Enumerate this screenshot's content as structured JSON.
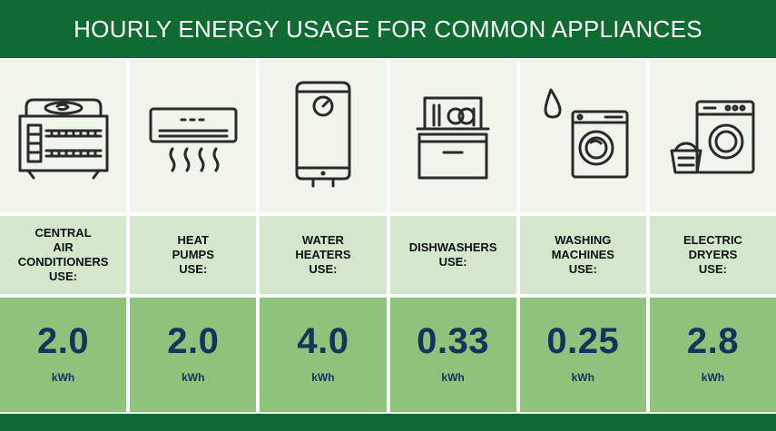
{
  "title": "HOURLY ENERGY USAGE FOR COMMON APPLIANCES",
  "colors": {
    "header": "#0f6b31",
    "icon_panel": "#eef6ec",
    "label_panel": "#d4e6cc",
    "value_panel": "#8fc27a",
    "value_text": "#15335c"
  },
  "appliances": [
    {
      "label": "CENTRAL\nAIR\nCONDITIONERS\nUSE:",
      "value": "2.0",
      "unit": "kWh",
      "icon": "air-conditioner-icon"
    },
    {
      "label": "HEAT\nPUMPS\nUSE:",
      "value": "2.0",
      "unit": "kWh",
      "icon": "heat-pump-icon"
    },
    {
      "label": "WATER\nHEATERS\nUSE:",
      "value": "4.0",
      "unit": "kWh",
      "icon": "water-heater-icon"
    },
    {
      "label": "DISHWASHERS\nUSE:",
      "value": "0.33",
      "unit": "kWh",
      "icon": "dishwasher-icon"
    },
    {
      "label": "WASHING\nMACHINES\nUSE:",
      "value": "0.25",
      "unit": "kWh",
      "icon": "washing-machine-icon"
    },
    {
      "label": "ELECTRIC\nDRYERS\nUSE:",
      "value": "2.8",
      "unit": "kWh",
      "icon": "electric-dryer-icon"
    }
  ]
}
